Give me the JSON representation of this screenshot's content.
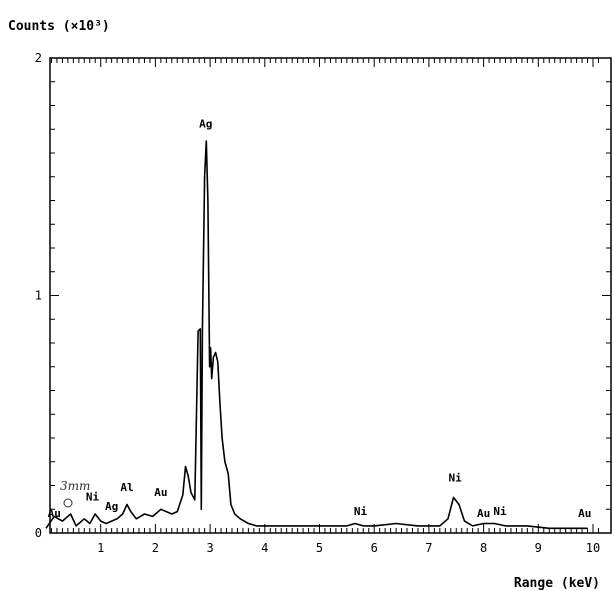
{
  "chart_data": {
    "type": "line",
    "title": "",
    "ylabel": "Counts (×10³)",
    "xlabel": "Range (keV)",
    "xlim": [
      0,
      10.2
    ],
    "ylim": [
      0,
      2
    ],
    "x_ticks": [
      "1",
      "2",
      "3",
      "4",
      "5",
      "6",
      "7",
      "8",
      "9",
      "10"
    ],
    "y_ticks": [
      "0",
      "1",
      "2"
    ],
    "grid": false,
    "series": [
      {
        "x": [
          0.0,
          0.15,
          0.3,
          0.45,
          0.55,
          0.7,
          0.8,
          0.9,
          1.0,
          1.1,
          1.2,
          1.3,
          1.4,
          1.48,
          1.55,
          1.65,
          1.8,
          1.95,
          2.1,
          2.2,
          2.3,
          2.4,
          2.5,
          2.55,
          2.6,
          2.65,
          2.72,
          2.78,
          2.82,
          2.84,
          2.86,
          2.9,
          2.93,
          2.96,
          2.99,
          3.01,
          3.03,
          3.06,
          3.1,
          3.14,
          3.18,
          3.22,
          3.27,
          3.33,
          3.38,
          3.45,
          3.55,
          3.7,
          3.85,
          4.0,
          4.5,
          5.0,
          5.5,
          5.65,
          5.8,
          6.0,
          6.4,
          6.8,
          7.2,
          7.35,
          7.45,
          7.55,
          7.65,
          7.8,
          8.0,
          8.2,
          8.4,
          8.8,
          9.2,
          9.6,
          9.9
        ],
        "y": [
          0.02,
          0.07,
          0.05,
          0.08,
          0.03,
          0.06,
          0.04,
          0.08,
          0.05,
          0.04,
          0.05,
          0.06,
          0.08,
          0.12,
          0.09,
          0.06,
          0.08,
          0.07,
          0.1,
          0.09,
          0.08,
          0.09,
          0.16,
          0.28,
          0.24,
          0.17,
          0.14,
          0.85,
          0.86,
          0.1,
          0.85,
          1.5,
          1.65,
          1.4,
          0.7,
          0.78,
          0.65,
          0.74,
          0.76,
          0.72,
          0.55,
          0.4,
          0.3,
          0.25,
          0.12,
          0.08,
          0.06,
          0.04,
          0.03,
          0.03,
          0.03,
          0.03,
          0.03,
          0.04,
          0.03,
          0.03,
          0.04,
          0.03,
          0.03,
          0.06,
          0.15,
          0.12,
          0.05,
          0.03,
          0.04,
          0.04,
          0.03,
          0.03,
          0.02,
          0.02,
          0.02
        ]
      }
    ],
    "annotations": [
      {
        "text": "Ag",
        "x": 2.92,
        "y": 1.69
      },
      {
        "text": "Ni",
        "x": 7.48,
        "y": 0.2
      },
      {
        "text": "Ni",
        "x": 5.75,
        "y": 0.06
      },
      {
        "text": "Au",
        "x": 8.0,
        "y": 0.05
      },
      {
        "text": "Ni",
        "x": 8.3,
        "y": 0.06
      },
      {
        "text": "Au",
        "x": 9.85,
        "y": 0.05
      },
      {
        "text": "Au",
        "x": 2.1,
        "y": 0.14
      },
      {
        "text": "Al",
        "x": 1.48,
        "y": 0.16
      },
      {
        "text": "Ag",
        "x": 1.2,
        "y": 0.08
      },
      {
        "text": "Ni",
        "x": 0.85,
        "y": 0.12
      },
      {
        "text": "Au",
        "x": 0.15,
        "y": 0.05
      }
    ],
    "handwritten_note": "3mm"
  }
}
